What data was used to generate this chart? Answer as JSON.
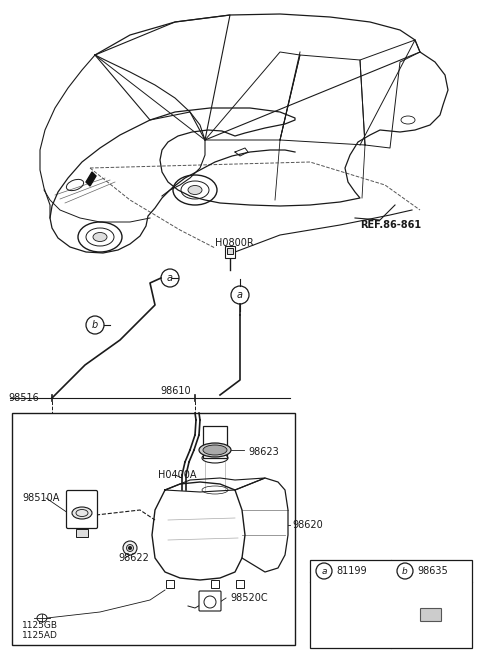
{
  "bg_color": "#ffffff",
  "line_color": "#1a1a1a",
  "labels": {
    "REF_86_861": "REF.86-861",
    "H0800R": "H0800R",
    "H0400A": "H0400A",
    "98516": "98516",
    "98610": "98610",
    "98510A": "98510A",
    "98622": "98622",
    "98623": "98623",
    "98620": "98620",
    "98520C": "98520C",
    "1125GB": "1125GB",
    "1125AD": "1125AD",
    "a_num": "81199",
    "b_num": "98635"
  }
}
